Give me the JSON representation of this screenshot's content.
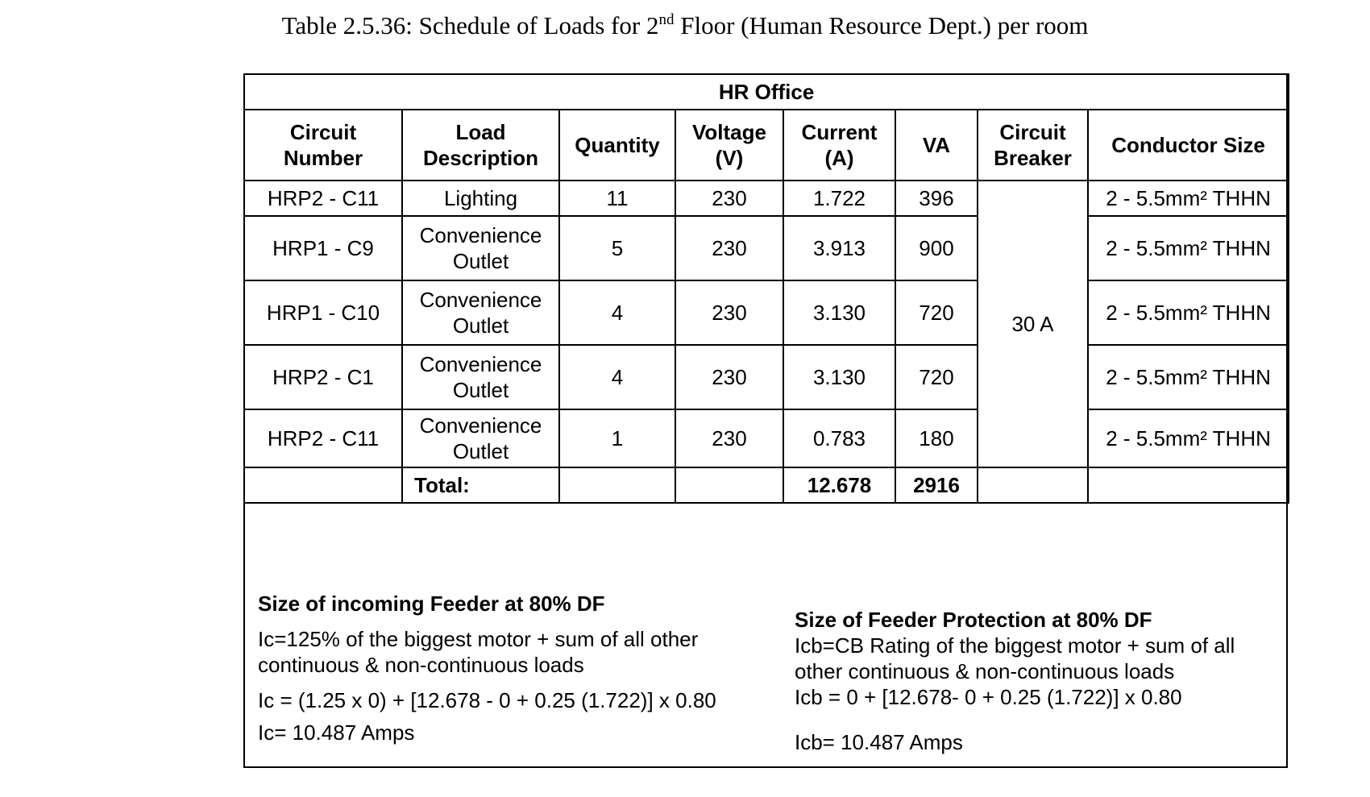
{
  "title": {
    "prefix": "Table 2.5.36: Schedule of Loads for 2",
    "superscript": "nd",
    "suffix": " Floor (Human Resource Dept.) per room"
  },
  "table": {
    "room": "HR Office",
    "headers": {
      "circuit_number_1": "Circuit",
      "circuit_number_2": "Number",
      "load_description_1": "Load",
      "load_description_2": "Description",
      "quantity": "Quantity",
      "voltage_1": "Voltage",
      "voltage_2": "(V)",
      "current_1": "Current",
      "current_2": "(A)",
      "va": "VA",
      "circuit_breaker_1": "Circuit",
      "circuit_breaker_2": "Breaker",
      "conductor_size": "Conductor Size"
    },
    "rows": [
      {
        "circuit": "HRP2 - C11",
        "load_1": "Lighting",
        "load_2": "",
        "quantity": "11",
        "voltage": "230",
        "current": "1.722",
        "va": "396",
        "conductor": "2 - 5.5mm² THHN"
      },
      {
        "circuit": "HRP1 - C9",
        "load_1": "Convenience",
        "load_2": "Outlet",
        "quantity": "5",
        "voltage": "230",
        "current": "3.913",
        "va": "900",
        "conductor": "2 - 5.5mm² THHN"
      },
      {
        "circuit": "HRP1 - C10",
        "load_1": "Convenience",
        "load_2": "Outlet",
        "quantity": "4",
        "voltage": "230",
        "current": "3.130",
        "va": "720",
        "conductor": "2 - 5.5mm² THHN"
      },
      {
        "circuit": "HRP2 - C1",
        "load_1": "Convenience",
        "load_2": "Outlet",
        "quantity": "4",
        "voltage": "230",
        "current": "3.130",
        "va": "720",
        "conductor": "2 - 5.5mm² THHN"
      },
      {
        "circuit": "HRP2 - C11",
        "load_1": "Convenience",
        "load_2": "Outlet",
        "quantity": "1",
        "voltage": "230",
        "current": "0.783",
        "va": "180",
        "conductor": "2 - 5.5mm² THHN"
      }
    ],
    "circuit_breaker": "30 A",
    "total": {
      "label": "Total:",
      "current": "12.678",
      "va": "2916"
    }
  },
  "feeder": {
    "title": "Size of incoming Feeder at 80% DF",
    "formula_line1": "Ic=125% of the biggest motor + sum of all other",
    "formula_line2": "continuous & non-continuous  loads",
    "calc": "Ic = (1.25 x 0) + [12.678 - 0 + 0.25 (1.722)] x 0.80",
    "result": "Ic= 10.487 Amps"
  },
  "protection": {
    "title": "Size of Feeder Protection at 80% DF",
    "formula_line1": "Icb=CB Rating of the biggest motor + sum of all",
    "formula_line2": "other continuous & non-continuous loads",
    "calc": "Icb = 0 + [12.678- 0 + 0.25 (1.722)] x 0.80",
    "result": "Icb= 10.487 Amps"
  }
}
